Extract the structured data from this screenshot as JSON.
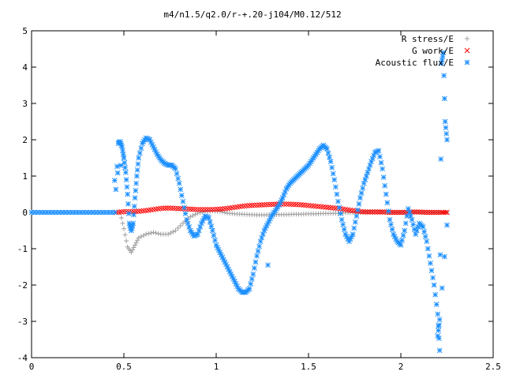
{
  "chart_data": {
    "type": "scatter",
    "title": "m4/n1.5/q2.0/r-+.20-j104/M0.12/512",
    "xlabel": "",
    "ylabel": "",
    "xlim": [
      0,
      2.5
    ],
    "ylim": [
      -4,
      5
    ],
    "xticks": [
      "0",
      "0.5",
      "1",
      "1.5",
      "2",
      "2.5"
    ],
    "yticks": [
      "5",
      "4",
      "3",
      "2",
      "1",
      "0",
      "-1",
      "-2",
      "-3",
      "-4"
    ],
    "legend_position": "top-right",
    "series": [
      {
        "name": "R stress/E",
        "color": "#a0a0a0",
        "marker": "plus",
        "points": [
          [
            0.48,
            0.0
          ],
          [
            0.5,
            -0.45
          ],
          [
            0.52,
            -0.95
          ],
          [
            0.54,
            -1.1
          ],
          [
            0.56,
            -0.9
          ],
          [
            0.58,
            -0.7
          ],
          [
            0.62,
            -0.6
          ],
          [
            0.66,
            -0.55
          ],
          [
            0.7,
            -0.6
          ],
          [
            0.74,
            -0.6
          ],
          [
            0.78,
            -0.5
          ],
          [
            0.82,
            -0.3
          ],
          [
            0.86,
            -0.12
          ],
          [
            0.9,
            -0.02
          ],
          [
            0.94,
            0.02
          ],
          [
            0.98,
            0.04
          ],
          [
            1.02,
            0.03
          ],
          [
            1.06,
            -0.02
          ],
          [
            1.1,
            -0.04
          ],
          [
            1.14,
            -0.05
          ],
          [
            1.18,
            -0.06
          ],
          [
            1.22,
            -0.07
          ],
          [
            1.26,
            -0.07
          ],
          [
            1.3,
            -0.06
          ],
          [
            1.34,
            -0.06
          ],
          [
            1.38,
            -0.06
          ],
          [
            1.42,
            -0.05
          ],
          [
            1.46,
            -0.05
          ],
          [
            1.5,
            -0.04
          ],
          [
            1.54,
            -0.04
          ],
          [
            1.58,
            -0.03
          ],
          [
            1.62,
            -0.03
          ],
          [
            1.66,
            -0.02
          ],
          [
            1.7,
            -0.01
          ],
          [
            1.74,
            -0.01
          ],
          [
            1.78,
            0.0
          ],
          [
            1.82,
            0.02
          ],
          [
            1.86,
            0.03
          ],
          [
            1.9,
            0.02
          ],
          [
            1.94,
            0.01
          ],
          [
            1.98,
            0.0
          ],
          [
            2.02,
            0.01
          ],
          [
            2.06,
            0.02
          ],
          [
            2.1,
            0.0
          ],
          [
            2.14,
            0.01
          ],
          [
            2.18,
            0.0
          ],
          [
            2.22,
            0.0
          ],
          [
            2.25,
            0.0
          ]
        ]
      },
      {
        "name": "G work/E",
        "color": "#ff0000",
        "marker": "cross",
        "points": [
          [
            0.46,
            0.0
          ],
          [
            0.5,
            0.02
          ],
          [
            0.54,
            0.02
          ],
          [
            0.58,
            0.03
          ],
          [
            0.62,
            0.05
          ],
          [
            0.66,
            0.08
          ],
          [
            0.7,
            0.11
          ],
          [
            0.74,
            0.12
          ],
          [
            0.78,
            0.11
          ],
          [
            0.82,
            0.1
          ],
          [
            0.86,
            0.09
          ],
          [
            0.9,
            0.08
          ],
          [
            0.94,
            0.08
          ],
          [
            0.98,
            0.08
          ],
          [
            1.02,
            0.09
          ],
          [
            1.06,
            0.11
          ],
          [
            1.1,
            0.14
          ],
          [
            1.14,
            0.17
          ],
          [
            1.18,
            0.19
          ],
          [
            1.22,
            0.2
          ],
          [
            1.26,
            0.21
          ],
          [
            1.3,
            0.22
          ],
          [
            1.34,
            0.23
          ],
          [
            1.38,
            0.23
          ],
          [
            1.42,
            0.22
          ],
          [
            1.46,
            0.21
          ],
          [
            1.5,
            0.19
          ],
          [
            1.54,
            0.17
          ],
          [
            1.58,
            0.15
          ],
          [
            1.62,
            0.13
          ],
          [
            1.66,
            0.11
          ],
          [
            1.7,
            0.08
          ],
          [
            1.74,
            0.05
          ],
          [
            1.78,
            0.02
          ],
          [
            1.82,
            0.01
          ],
          [
            1.86,
            0.01
          ],
          [
            1.9,
            0.01
          ],
          [
            1.94,
            0.0
          ],
          [
            1.98,
            0.0
          ],
          [
            2.02,
            0.0
          ],
          [
            2.06,
            0.01
          ],
          [
            2.1,
            0.01
          ],
          [
            2.14,
            0.0
          ],
          [
            2.18,
            0.0
          ],
          [
            2.22,
            0.0
          ],
          [
            2.25,
            0.0
          ]
        ]
      },
      {
        "name": "Acoustic flux/E",
        "color": "#1e90ff",
        "marker": "star",
        "points": [
          [
            0.0,
            0.0
          ],
          [
            0.05,
            0.0
          ],
          [
            0.1,
            0.0
          ],
          [
            0.15,
            0.0
          ],
          [
            0.2,
            0.0
          ],
          [
            0.25,
            0.0
          ],
          [
            0.3,
            0.0
          ],
          [
            0.35,
            0.0
          ],
          [
            0.4,
            0.0
          ],
          [
            0.45,
            0.0
          ],
          [
            0.47,
            1.9
          ],
          [
            0.48,
            1.95
          ],
          [
            0.49,
            1.8
          ],
          [
            0.5,
            1.5
          ],
          [
            0.51,
            1.1
          ],
          [
            0.52,
            0.5
          ],
          [
            0.53,
            -0.3
          ],
          [
            0.54,
            -0.5
          ],
          [
            0.55,
            -0.3
          ],
          [
            0.56,
            0.4
          ],
          [
            0.57,
            1.0
          ],
          [
            0.58,
            1.5
          ],
          [
            0.6,
            1.9
          ],
          [
            0.62,
            2.05
          ],
          [
            0.64,
            2.0
          ],
          [
            0.66,
            1.8
          ],
          [
            0.68,
            1.6
          ],
          [
            0.7,
            1.45
          ],
          [
            0.72,
            1.35
          ],
          [
            0.74,
            1.3
          ],
          [
            0.76,
            1.3
          ],
          [
            0.78,
            1.2
          ],
          [
            0.8,
            0.8
          ],
          [
            0.82,
            0.3
          ],
          [
            0.84,
            -0.2
          ],
          [
            0.86,
            -0.5
          ],
          [
            0.88,
            -0.65
          ],
          [
            0.9,
            -0.6
          ],
          [
            0.92,
            -0.3
          ],
          [
            0.94,
            -0.1
          ],
          [
            0.96,
            -0.15
          ],
          [
            0.98,
            -0.5
          ],
          [
            1.0,
            -0.9
          ],
          [
            1.02,
            -1.1
          ],
          [
            1.04,
            -1.3
          ],
          [
            1.06,
            -1.5
          ],
          [
            1.08,
            -1.7
          ],
          [
            1.1,
            -1.9
          ],
          [
            1.12,
            -2.1
          ],
          [
            1.14,
            -2.2
          ],
          [
            1.16,
            -2.2
          ],
          [
            1.18,
            -2.1
          ],
          [
            1.2,
            -1.7
          ],
          [
            1.22,
            -1.2
          ],
          [
            1.24,
            -0.8
          ],
          [
            1.26,
            -0.5
          ],
          [
            1.28,
            -0.3
          ],
          [
            1.3,
            -0.1
          ],
          [
            1.32,
            0.05
          ],
          [
            1.34,
            0.2
          ],
          [
            1.36,
            0.4
          ],
          [
            1.38,
            0.65
          ],
          [
            1.4,
            0.8
          ],
          [
            1.42,
            0.9
          ],
          [
            1.44,
            1.0
          ],
          [
            1.46,
            1.1
          ],
          [
            1.48,
            1.2
          ],
          [
            1.5,
            1.3
          ],
          [
            1.52,
            1.45
          ],
          [
            1.54,
            1.6
          ],
          [
            1.56,
            1.75
          ],
          [
            1.58,
            1.85
          ],
          [
            1.6,
            1.75
          ],
          [
            1.62,
            1.4
          ],
          [
            1.64,
            0.9
          ],
          [
            1.66,
            0.3
          ],
          [
            1.68,
            -0.2
          ],
          [
            1.7,
            -0.6
          ],
          [
            1.72,
            -0.8
          ],
          [
            1.74,
            -0.6
          ],
          [
            1.76,
            -0.1
          ],
          [
            1.78,
            0.4
          ],
          [
            1.8,
            0.8
          ],
          [
            1.82,
            1.1
          ],
          [
            1.84,
            1.4
          ],
          [
            1.86,
            1.65
          ],
          [
            1.88,
            1.7
          ],
          [
            1.9,
            1.2
          ],
          [
            1.92,
            0.5
          ],
          [
            1.94,
            -0.2
          ],
          [
            1.96,
            -0.6
          ],
          [
            1.98,
            -0.8
          ],
          [
            2.0,
            -0.9
          ],
          [
            2.02,
            -0.5
          ],
          [
            2.04,
            0.1
          ],
          [
            2.06,
            -0.2
          ],
          [
            2.08,
            -0.6
          ],
          [
            2.1,
            -0.3
          ],
          [
            2.12,
            -0.4
          ],
          [
            2.14,
            -0.8
          ],
          [
            2.16,
            -1.4
          ],
          [
            2.18,
            -2.0
          ],
          [
            2.2,
            -2.8
          ],
          [
            2.21,
            -3.8
          ],
          [
            2.22,
            4.1
          ],
          [
            2.23,
            4.4
          ],
          [
            2.24,
            2.5
          ],
          [
            2.25,
            2.0
          ],
          [
            0.45,
            0.88
          ],
          [
            0.5,
            1.5
          ],
          [
            1.28,
            -1.45
          ],
          [
            2.2,
            -3.4
          ],
          [
            2.21,
            -2.95
          ],
          [
            2.25,
            -0.35
          ]
        ]
      }
    ]
  }
}
